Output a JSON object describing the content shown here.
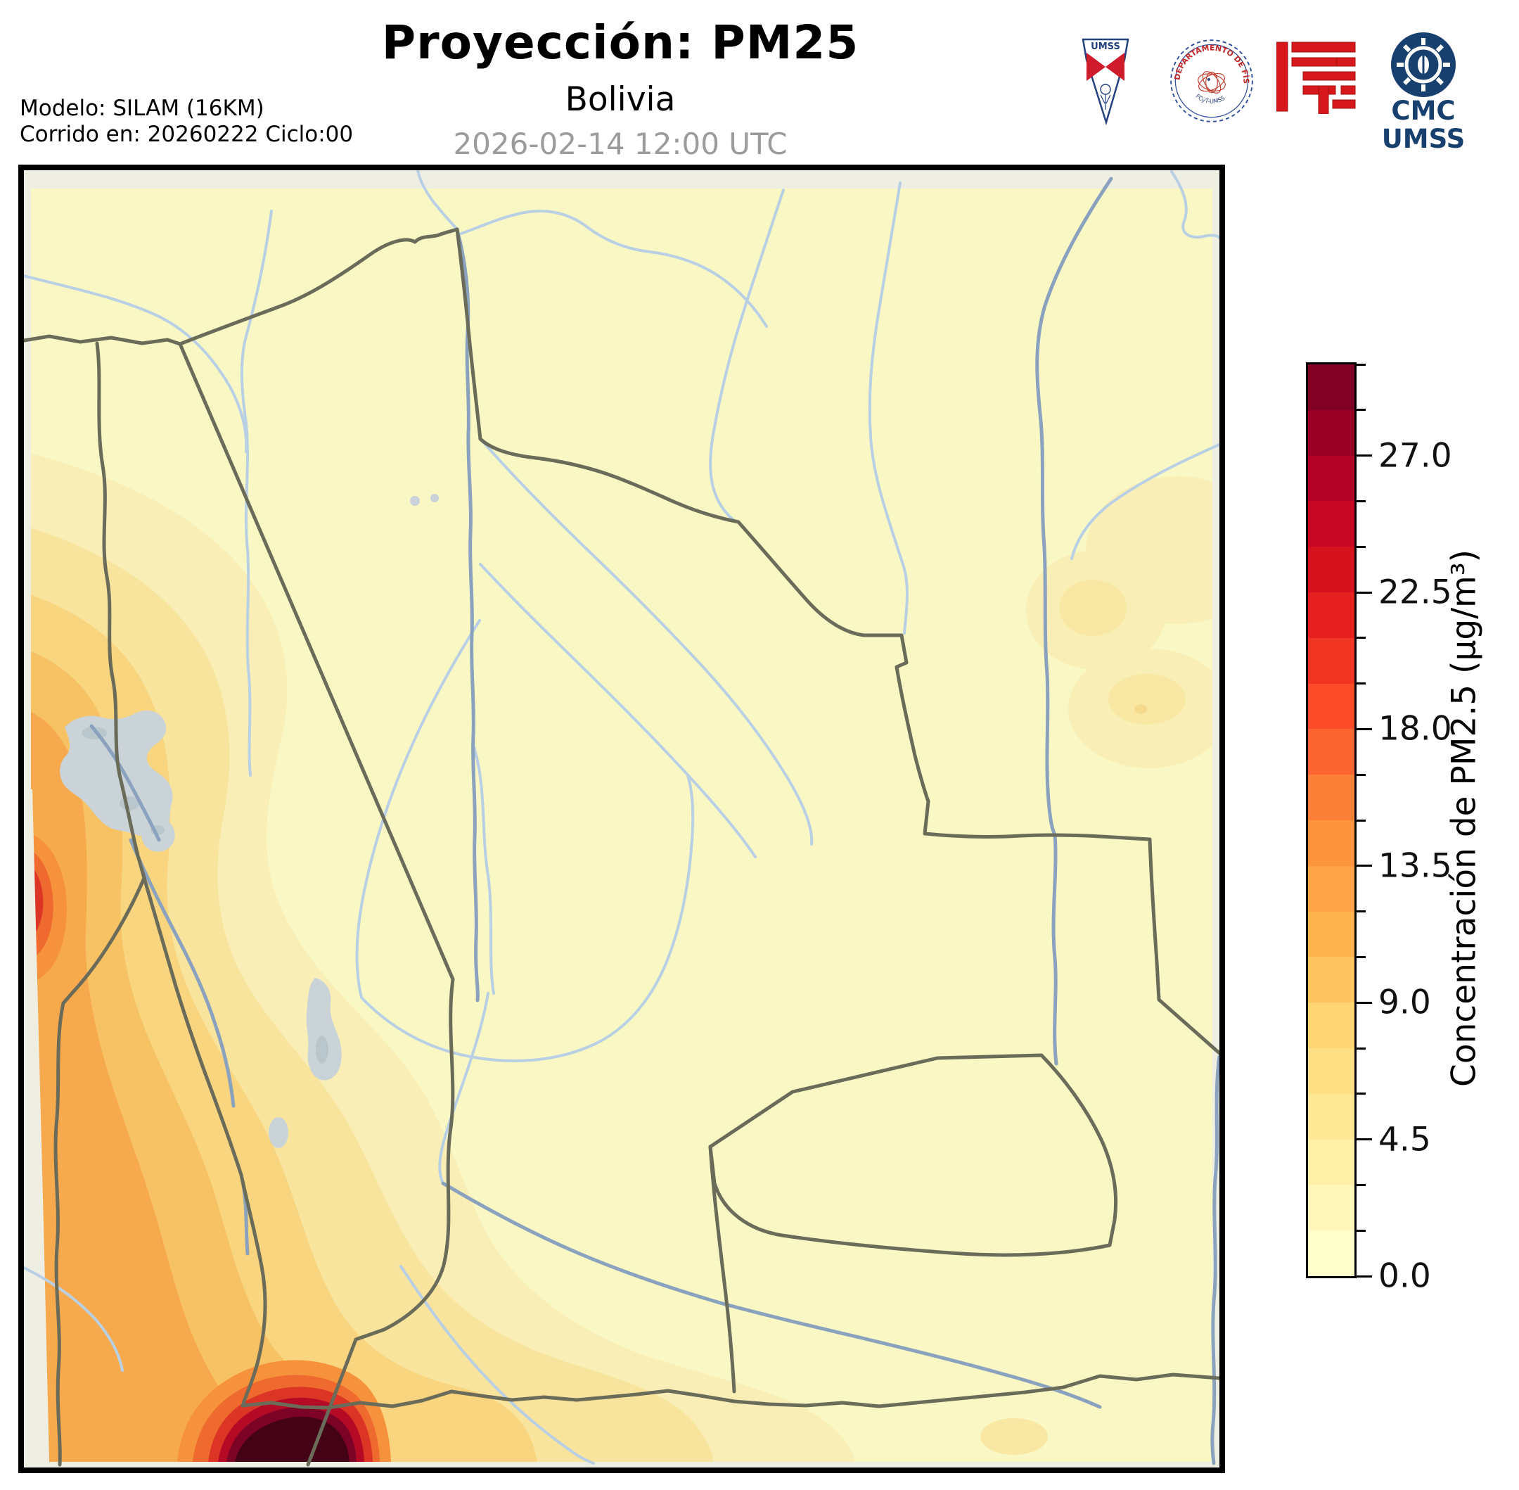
{
  "figure": {
    "title": "Proyección: PM25",
    "subtitle": "Bolivia",
    "timestamp": "2026-02-14 12:00 UTC",
    "model_line1": "Modelo: SILAM (16KM)",
    "model_line2": "Corrido en: 20260222 Ciclo:00"
  },
  "logos": {
    "umss_pennant": {
      "label": "UMSS"
    },
    "fisica_seal": {
      "arc_top": "DEPARTAMENTO DE FÍSICA",
      "arc_bottom": "FCyT-UMSS"
    },
    "cmc": {
      "line1": "CMC",
      "line2": "UMSS"
    }
  },
  "colorbar": {
    "label": "Concentración de PM2.5 (µg/m³)",
    "min": 0,
    "max": 30,
    "interval": 1.5,
    "ticks": [
      {
        "v": 30.0,
        "label": ""
      },
      {
        "v": 28.5,
        "label": ""
      },
      {
        "v": 27.0,
        "label": "27.0"
      },
      {
        "v": 25.5,
        "label": ""
      },
      {
        "v": 24.0,
        "label": ""
      },
      {
        "v": 22.5,
        "label": "22.5"
      },
      {
        "v": 21.0,
        "label": ""
      },
      {
        "v": 19.5,
        "label": ""
      },
      {
        "v": 18.0,
        "label": "18.0"
      },
      {
        "v": 16.5,
        "label": ""
      },
      {
        "v": 15.0,
        "label": ""
      },
      {
        "v": 13.5,
        "label": "13.5"
      },
      {
        "v": 12.0,
        "label": ""
      },
      {
        "v": 10.5,
        "label": ""
      },
      {
        "v": 9.0,
        "label": "9.0"
      },
      {
        "v": 7.5,
        "label": ""
      },
      {
        "v": 6.0,
        "label": ""
      },
      {
        "v": 4.5,
        "label": "4.5"
      },
      {
        "v": 3.0,
        "label": ""
      },
      {
        "v": 1.5,
        "label": ""
      },
      {
        "v": 0.0,
        "label": "0.0"
      }
    ],
    "segment_colors_top_to_bottom": [
      "#800026",
      "#9a0026",
      "#b30026",
      "#c70723",
      "#d7121f",
      "#e6201e",
      "#f03523",
      "#fb4b29",
      "#fc6531",
      "#fd8038",
      "#fd953f",
      "#fea446",
      "#feb44e",
      "#fec460",
      "#fed572",
      "#fedf83",
      "#ffe895",
      "#fff0a7",
      "#fff7ba",
      "#ffffcc"
    ]
  },
  "map": {
    "colors": {
      "frame_bg": "#efeee3",
      "data_bg": "#f9f8c5",
      "border": "#6b6b5a",
      "river": "#b9cfe4",
      "river_dark": "#8aa2bd",
      "lake": "#c9d3d8",
      "lake_dark": "#b9c7cd",
      "l1": "#f9efb6",
      "l1b": "#f8e8a3",
      "l1c": "#f5d98c",
      "l2": "#f8e49c",
      "l3": "#f8d57e",
      "l4": "#f7c263",
      "l5": "#f7aa4d",
      "l6": "#f6923c",
      "l7": "#ee6a2e",
      "l8": "#dc3425",
      "l9": "#b50a26",
      "l10": "#7c0325",
      "l11": "#440217"
    }
  },
  "chart_data": {
    "type": "heatmap",
    "title": "Proyección: PM25",
    "region": "Bolivia",
    "variable": "Concentración de PM2.5",
    "units": "µg/m³",
    "colormap": "YlOrRd (discrete, 20 levels)",
    "scale_min": 0.0,
    "scale_max": 30.0,
    "contour_interval": 1.5,
    "labeled_levels": [
      0.0,
      4.5,
      9.0,
      13.5,
      18.0,
      22.5,
      27.0
    ],
    "notes": "PM2.5 below ~4.5 over most of Bolivia; elevated band (≈4.5–18) along the western Andes / Chile border; extreme hotspot (>27) at the far southwest near the Bolivia–Argentina border; faint warm patches (≈3–6) in eastern Santa Cruz"
  }
}
